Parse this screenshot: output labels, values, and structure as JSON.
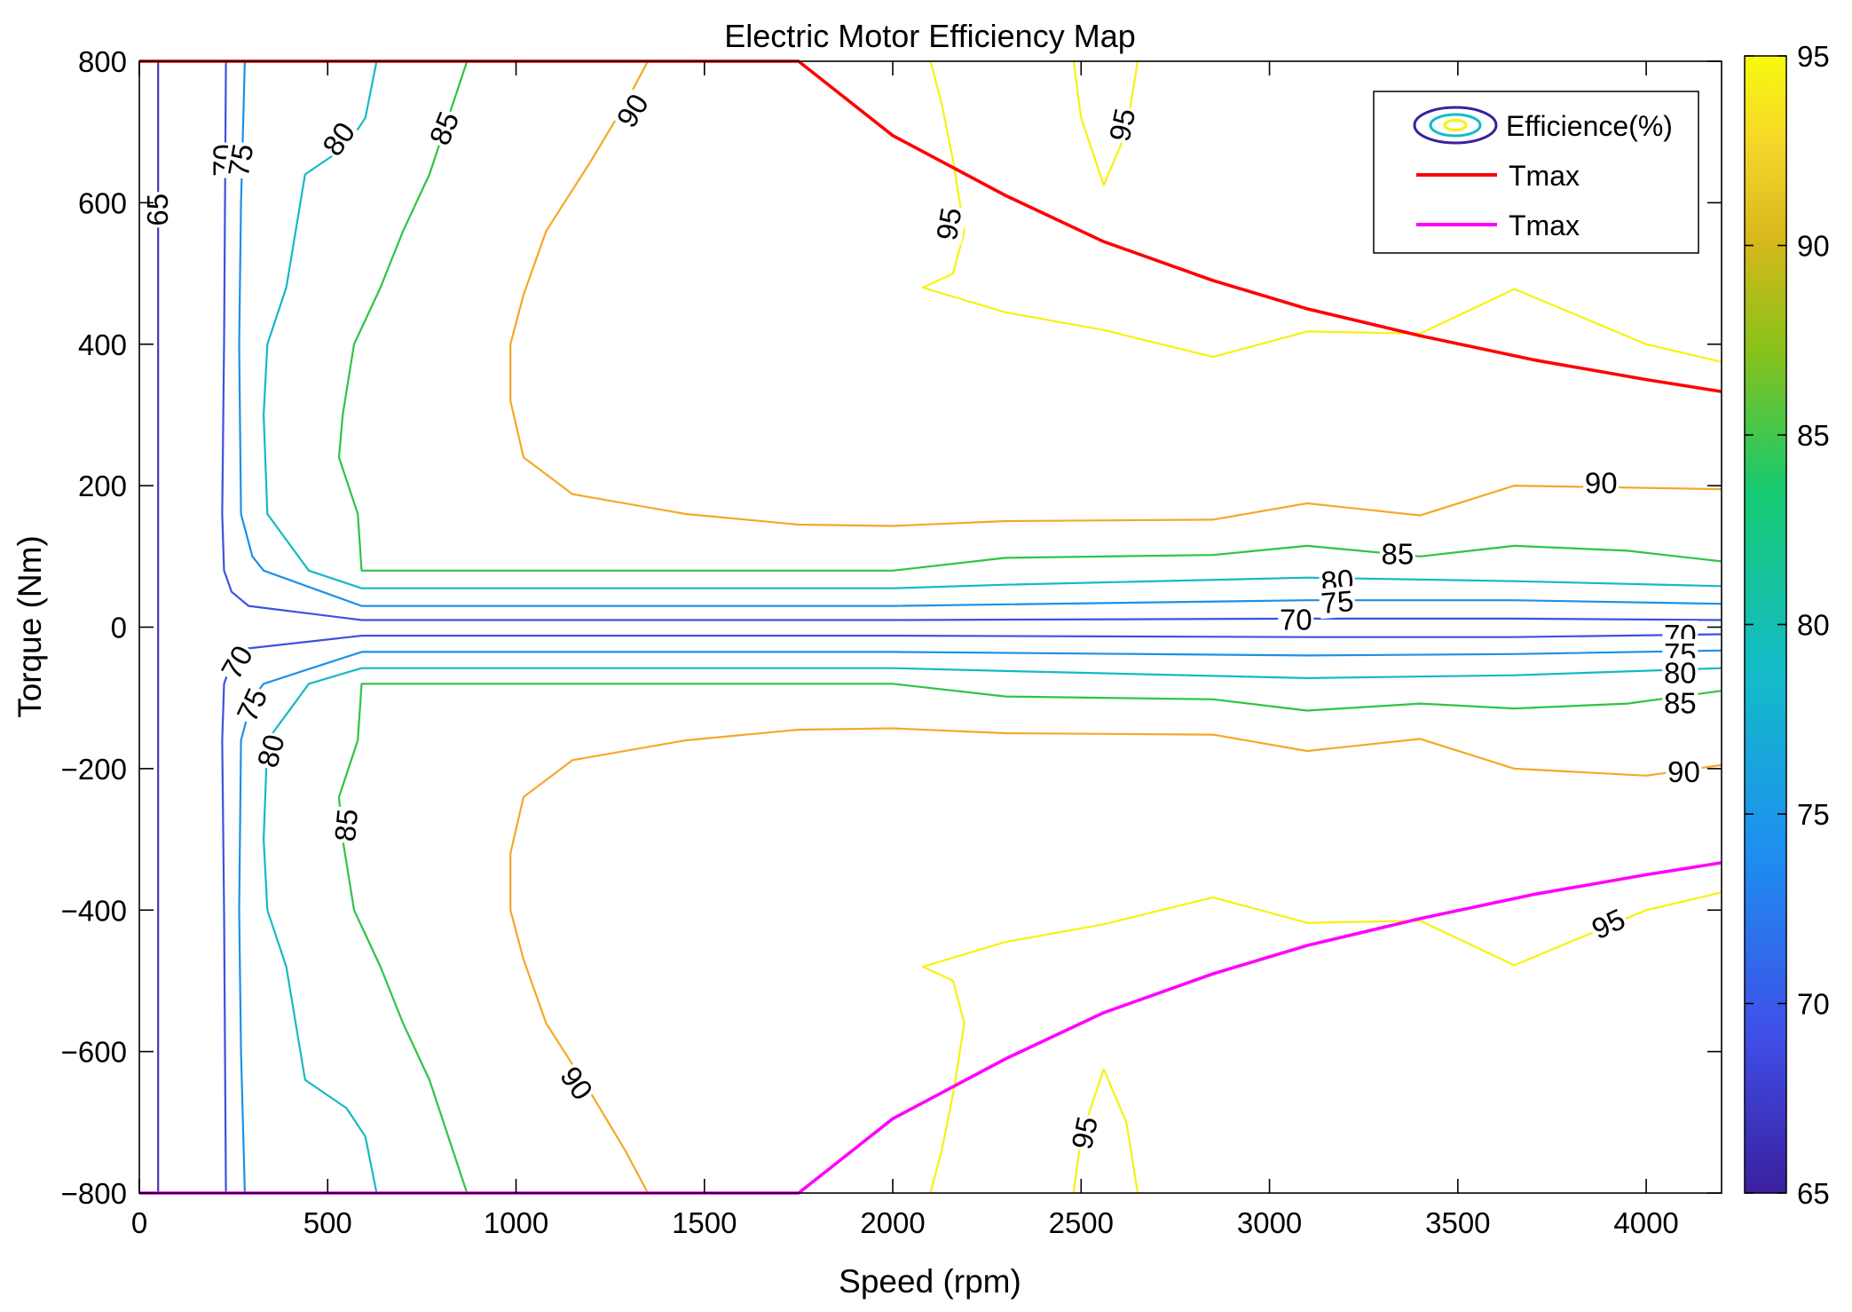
{
  "chart_data": {
    "type": "contour",
    "title": "Electric Motor Efficiency Map",
    "xlabel": "Speed (rpm)",
    "ylabel": "Torque (Nm)",
    "xlim": [
      0,
      4200
    ],
    "ylim": [
      -800,
      800
    ],
    "x_ticks": [
      0,
      500,
      1000,
      1500,
      2000,
      2500,
      3000,
      3500,
      4000
    ],
    "x_tick_labels": [
      "0",
      "500",
      "1000",
      "1500",
      "2000",
      "2500",
      "3000",
      "3500",
      "4000"
    ],
    "y_ticks": [
      800,
      600,
      400,
      200,
      0,
      -200,
      -400,
      -600,
      -800
    ],
    "y_tick_labels": [
      "800",
      "600",
      "400",
      "200",
      "0",
      "−200",
      "−400",
      "−600",
      "−800"
    ],
    "colorbar": {
      "min": 65,
      "max": 95,
      "ticks": [
        95,
        90,
        85,
        80,
        75,
        70,
        65
      ],
      "tick_labels": [
        "95",
        "90",
        "85",
        "80",
        "75",
        "70",
        "65"
      ],
      "colors": [
        "#3b1f9e",
        "#3f4fe8",
        "#1d8ff0",
        "#14bcc8",
        "#17c96f",
        "#88c21a",
        "#d8b81c",
        "#f5d52a",
        "#f8f90f"
      ]
    },
    "legend": {
      "position": "top-right",
      "entries": [
        {
          "label": "Efficience(%)",
          "kind": "contour"
        },
        {
          "label": "Tmax",
          "color": "#ff0000"
        },
        {
          "label": "Tmax",
          "color": "#ff00ff"
        }
      ]
    },
    "tmax_motor": {
      "name": "Tmax",
      "color": "#ff0000",
      "x": [
        0,
        1750,
        2000,
        2300,
        2560,
        2850,
        3100,
        3400,
        3700,
        4000,
        4200
      ],
      "y": [
        800,
        800,
        695,
        610,
        545,
        490,
        450,
        412,
        378,
        350,
        333
      ]
    },
    "tmax_regen": {
      "name": "Tmax",
      "color": "#ff00ff",
      "x": [
        0,
        1750,
        2000,
        2300,
        2560,
        2850,
        3100,
        3400,
        3700,
        4000,
        4200
      ],
      "y": [
        -800,
        -800,
        -695,
        -610,
        -545,
        -490,
        -450,
        -412,
        -378,
        -350,
        -333
      ]
    },
    "contours": [
      {
        "level": 65,
        "color": "#4b35b5",
        "paths": [
          {
            "x": [
              50,
              50
            ],
            "y": [
              800,
              -800
            ]
          }
        ]
      },
      {
        "level": 70,
        "color": "#3c52e0",
        "paths": [
          {
            "x": [
              230,
              225,
              220,
              225,
              245,
              290,
              590,
              2000,
              3100,
              3650,
              4200
            ],
            "y": [
              800,
              400,
              160,
              80,
              50,
              30,
              10,
              10,
              12,
              12,
              10
            ]
          },
          {
            "x": [
              230,
              225,
              220,
              225,
              245,
              290,
              590,
              2000,
              3100,
              3650,
              4200
            ],
            "y": [
              -800,
              -400,
              -160,
              -80,
              -50,
              -30,
              -12,
              -12,
              -14,
              -14,
              -10
            ]
          }
        ]
      },
      {
        "level": 75,
        "color": "#1e90e6",
        "paths": [
          {
            "x": [
              280,
              270,
              265,
              270,
              300,
              330,
              590,
              2000,
              3100,
              3650,
              4200
            ],
            "y": [
              800,
              600,
              400,
              160,
              100,
              80,
              30,
              30,
              38,
              38,
              33
            ]
          },
          {
            "x": [
              280,
              270,
              265,
              270,
              300,
              330,
              590,
              2000,
              3100,
              3650,
              4200
            ],
            "y": [
              -800,
              -600,
              -400,
              -160,
              -100,
              -80,
              -35,
              -35,
              -40,
              -38,
              -33
            ]
          }
        ]
      },
      {
        "level": 80,
        "color": "#15b9c4",
        "paths": [
          {
            "x": [
              630,
              600,
              550,
              440,
              390,
              340,
              330,
              340,
              450,
              590,
              2000,
              2300,
              3100,
              3650,
              4200
            ],
            "y": [
              800,
              720,
              680,
              640,
              480,
              400,
              300,
              160,
              80,
              55,
              55,
              60,
              70,
              65,
              58
            ]
          },
          {
            "x": [
              630,
              600,
              550,
              440,
              390,
              340,
              330,
              340,
              450,
              590,
              2000,
              2300,
              3100,
              3650,
              4200
            ],
            "y": [
              -800,
              -720,
              -680,
              -640,
              -480,
              -400,
              -300,
              -160,
              -80,
              -58,
              -58,
              -62,
              -72,
              -68,
              -58
            ]
          }
        ]
      },
      {
        "level": 85,
        "color": "#2ec445",
        "paths": [
          {
            "x": [
              870,
              770,
              700,
              640,
              570,
              540,
              530,
              580,
              590,
              2000,
              2300,
              2850,
              3100,
              3400,
              3650,
              3950,
              4200
            ],
            "y": [
              800,
              640,
              560,
              480,
              400,
              300,
              240,
              160,
              80,
              80,
              98,
              102,
              115,
              100,
              115,
              108,
              93
            ]
          },
          {
            "x": [
              870,
              770,
              700,
              640,
              570,
              540,
              530,
              580,
              590,
              2000,
              2300,
              2850,
              3100,
              3400,
              3650,
              3950,
              4200
            ],
            "y": [
              -800,
              -640,
              -560,
              -480,
              -400,
              -300,
              -240,
              -160,
              -80,
              -80,
              -98,
              -102,
              -118,
              -108,
              -115,
              -108,
              -90
            ]
          }
        ]
      },
      {
        "level": 90,
        "color": "#f5a826",
        "paths": [
          {
            "x": [
              1350,
              1290,
              1200,
              1080,
              1020,
              985,
              985,
              1020,
              1150,
              1450,
              1750,
              2000,
              2300,
              2850,
              3100,
              3400,
              3650,
              4200
            ],
            "y": [
              800,
              740,
              660,
              560,
              470,
              400,
              320,
              240,
              188,
              160,
              145,
              143,
              150,
              152,
              175,
              158,
              200,
              195
            ]
          },
          {
            "x": [
              1350,
              1290,
              1200,
              1080,
              1020,
              985,
              985,
              1020,
              1150,
              1450,
              1750,
              2000,
              2300,
              2850,
              3100,
              3400,
              3650,
              4000,
              4200
            ],
            "y": [
              -800,
              -740,
              -660,
              -560,
              -470,
              -400,
              -320,
              -240,
              -188,
              -160,
              -145,
              -143,
              -150,
              -152,
              -175,
              -158,
              -200,
              -210,
              -195
            ]
          }
        ]
      },
      {
        "level": 95,
        "color": "#f8f20f",
        "paths": [
          {
            "x": [
              2100,
              2130,
              2160,
              2190,
              2160,
              2080,
              2300,
              2560,
              2850,
              3100,
              3400,
              3650,
              4000,
              4200
            ],
            "y": [
              800,
              740,
              660,
              560,
              500,
              480,
              445,
              420,
              382,
              418,
              415,
              478,
              400,
              375
            ]
          },
          {
            "x": [
              2480,
              2500,
              2560,
              2620,
              2650
            ],
            "y": [
              800,
              720,
              625,
              700,
              800
            ]
          },
          {
            "x": [
              2100,
              2130,
              2160,
              2190,
              2160,
              2080,
              2300,
              2560,
              2850,
              3100,
              3400,
              3650,
              4000,
              4200
            ],
            "y": [
              -800,
              -740,
              -660,
              -560,
              -500,
              -480,
              -445,
              -420,
              -382,
              -418,
              -415,
              -478,
              -400,
              -375
            ]
          },
          {
            "x": [
              2480,
              2500,
              2560,
              2620,
              2650
            ],
            "y": [
              -800,
              -720,
              -625,
              -700,
              -800
            ]
          }
        ]
      }
    ],
    "contour_labels": [
      {
        "text": "65",
        "x": 50,
        "y": 590,
        "angle": -90
      },
      {
        "text": "70",
        "x": 225,
        "y": 660,
        "angle": -90
      },
      {
        "text": "75",
        "x": 270,
        "y": 660,
        "angle": -80
      },
      {
        "text": "80",
        "x": 530,
        "y": 690,
        "angle": -55
      },
      {
        "text": "85",
        "x": 810,
        "y": 705,
        "angle": -68
      },
      {
        "text": "90",
        "x": 1310,
        "y": 730,
        "angle": -58
      },
      {
        "text": "95",
        "x": 2150,
        "y": 570,
        "angle": -80
      },
      {
        "text": "95",
        "x": 2610,
        "y": 710,
        "angle": -78
      },
      {
        "text": "90",
        "x": 3880,
        "y": 203,
        "angle": 0
      },
      {
        "text": "85",
        "x": 3340,
        "y": 103,
        "angle": 0
      },
      {
        "text": "80",
        "x": 3180,
        "y": 65,
        "angle": -5
      },
      {
        "text": "75",
        "x": 3180,
        "y": 35,
        "angle": -5
      },
      {
        "text": "70",
        "x": 3070,
        "y": 10,
        "angle": 0
      },
      {
        "text": "70",
        "x": 260,
        "y": -50,
        "angle": -60
      },
      {
        "text": "75",
        "x": 300,
        "y": -110,
        "angle": -65
      },
      {
        "text": "80",
        "x": 350,
        "y": -175,
        "angle": -75
      },
      {
        "text": "85",
        "x": 550,
        "y": -280,
        "angle": -85
      },
      {
        "text": "90",
        "x": 1160,
        "y": -645,
        "angle": 55
      },
      {
        "text": "95",
        "x": 2510,
        "y": -715,
        "angle": -78
      },
      {
        "text": "70",
        "x": 4090,
        "y": -12,
        "angle": 0
      },
      {
        "text": "75",
        "x": 4090,
        "y": -38,
        "angle": 0
      },
      {
        "text": "80",
        "x": 4090,
        "y": -65,
        "angle": 0
      },
      {
        "text": "85",
        "x": 4090,
        "y": -108,
        "angle": 0
      },
      {
        "text": "90",
        "x": 4100,
        "y": -205,
        "angle": 0
      },
      {
        "text": "95",
        "x": 3900,
        "y": -420,
        "angle": -25
      }
    ]
  }
}
